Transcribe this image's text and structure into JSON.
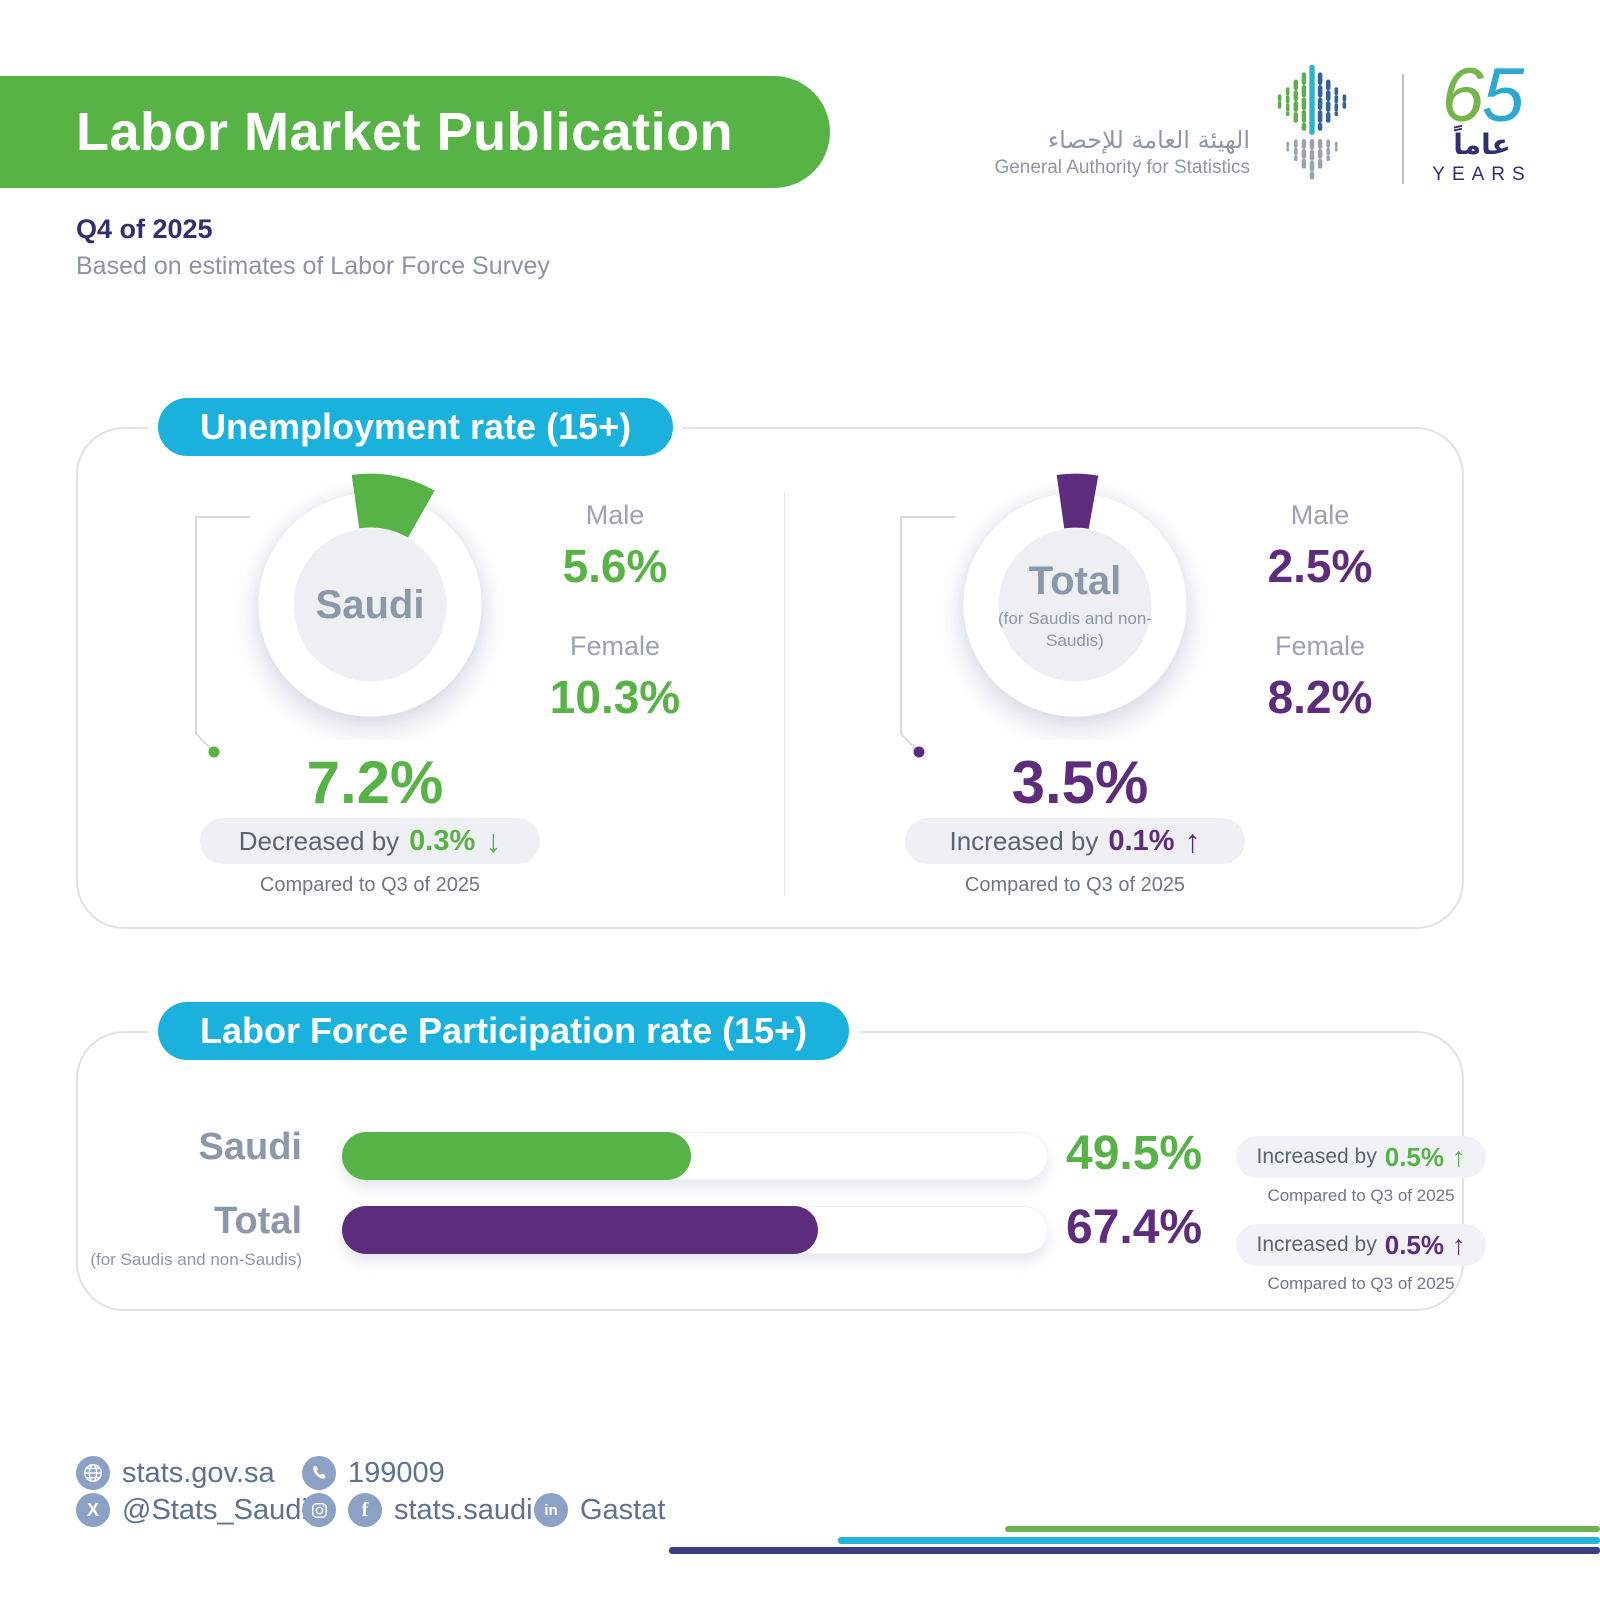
{
  "colors": {
    "green": "#57b345",
    "purple": "#5e2c7c",
    "blue": "#1ab2dd",
    "navy": "#303070"
  },
  "header": {
    "title": "Labor Market Publication",
    "period": "Q4 of 2025",
    "subtitle": "Based on estimates of Labor Force Survey",
    "org_ar": "الهيئة العامة للإحصاء",
    "org_en": "General Authority for Statistics",
    "anniv": {
      "digits": [
        "6",
        "5"
      ],
      "arabic": "عاماً",
      "years": "YEARS"
    }
  },
  "unemployment": {
    "section_title": "Unemployment rate (15+)",
    "groups": [
      {
        "label": "Saudi",
        "rate": "7.2%",
        "rate_value": 7.2,
        "male_label": "Male",
        "male": "5.6%",
        "female_label": "Female",
        "female": "10.3%",
        "change_prefix": "Decreased by",
        "change": "0.3%",
        "arrow": "↓",
        "compare": "Compared to Q3 of 2025"
      },
      {
        "label": "Total",
        "sublabel": "(for Saudis and non-Saudis)",
        "rate": "3.5%",
        "rate_value": 3.5,
        "male_label": "Male",
        "male": "2.5%",
        "female_label": "Female",
        "female": "8.2%",
        "change_prefix": "Increased by",
        "change": "0.1%",
        "arrow": "↑",
        "compare": "Compared to Q3 of 2025"
      }
    ]
  },
  "participation": {
    "section_title": "Labor Force Participation rate (15+)",
    "rows": [
      {
        "label": "Saudi",
        "value": "49.5%",
        "value_num": 49.5,
        "change_prefix": "Increased by",
        "change": "0.5%",
        "arrow": "↑",
        "compare": "Compared to Q3 of 2025"
      },
      {
        "label": "Total",
        "sublabel": "(for Saudis and non-Saudis)",
        "value": "67.4%",
        "value_num": 67.4,
        "change_prefix": "Increased by",
        "change": "0.5%",
        "arrow": "↑",
        "compare": "Compared to Q3 of 2025"
      }
    ]
  },
  "footer": {
    "website": "stats.gov.sa",
    "phone": "199009",
    "x_handle": "@Stats_Saudi",
    "social_handle": "stats.saudi",
    "linkedin": "Gastat"
  },
  "chart_data": [
    {
      "type": "pie",
      "title": "Unemployment rate (15+)",
      "unit": "%",
      "series": [
        {
          "name": "Saudi",
          "overall": 7.2,
          "male": 5.6,
          "female": 10.3,
          "change_vs_prev_quarter": -0.3
        },
        {
          "name": "Total (for Saudis and non-Saudis)",
          "overall": 3.5,
          "male": 2.5,
          "female": 8.2,
          "change_vs_prev_quarter": 0.1
        }
      ],
      "note": "Compared to Q3 of 2025"
    },
    {
      "type": "bar",
      "title": "Labor Force Participation rate (15+)",
      "unit": "%",
      "categories": [
        "Saudi",
        "Total (for Saudis and non-Saudis)"
      ],
      "values": [
        49.5,
        67.4
      ],
      "changes_vs_prev_quarter": [
        0.5,
        0.5
      ],
      "xlim": [
        0,
        100
      ],
      "note": "Compared to Q3 of 2025"
    }
  ]
}
